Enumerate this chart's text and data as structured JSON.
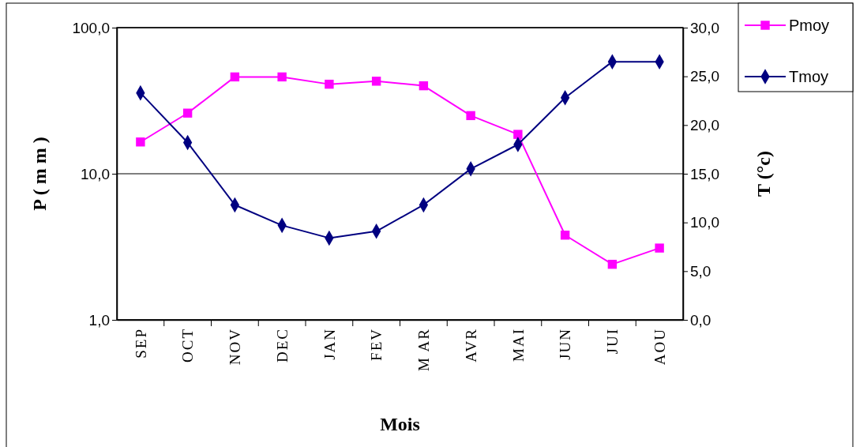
{
  "chart_data": {
    "type": "line",
    "xlabel": "Mois",
    "ylabel": "P ( m m )",
    "y2label": "T (°c)",
    "categories": [
      "SEP",
      "OCT",
      "NOV",
      "DEC",
      "JAN",
      "FEV",
      "M AR",
      "AVR",
      "MAI",
      "JUN",
      "JUI",
      "AOU"
    ],
    "series": [
      {
        "name": "Pmoy",
        "color": "#ff00ff",
        "marker": "square",
        "values": [
          16.5,
          26,
          46,
          46,
          41,
          43,
          40,
          25,
          18.6,
          3.8,
          2.4,
          3.1
        ]
      },
      {
        "name": "Tmoy",
        "color": "#000080",
        "marker": "diamond",
        "axis": "y2",
        "values": [
          23.3,
          18.2,
          11.8,
          9.7,
          8.4,
          9.1,
          11.8,
          15.5,
          18.0,
          22.8,
          26.5,
          26.5
        ]
      }
    ],
    "log": true,
    "ylim": [
      1,
      100
    ],
    "yticks": [
      {
        "value": 1,
        "label": "1,0"
      },
      {
        "value": 10,
        "label": "10,0"
      },
      {
        "value": 100,
        "label": "100,0"
      }
    ],
    "y2lim": [
      0,
      30
    ],
    "y2ticks": [
      {
        "value": 0,
        "label": "0,0"
      },
      {
        "value": 5,
        "label": "5,0"
      },
      {
        "value": 10,
        "label": "10,0"
      },
      {
        "value": 15,
        "label": "15,0"
      },
      {
        "value": 20,
        "label": "20,0"
      },
      {
        "value": 25,
        "label": "25,0"
      },
      {
        "value": 30,
        "label": "30,0"
      }
    ],
    "grid": "y",
    "legend": "top right"
  }
}
